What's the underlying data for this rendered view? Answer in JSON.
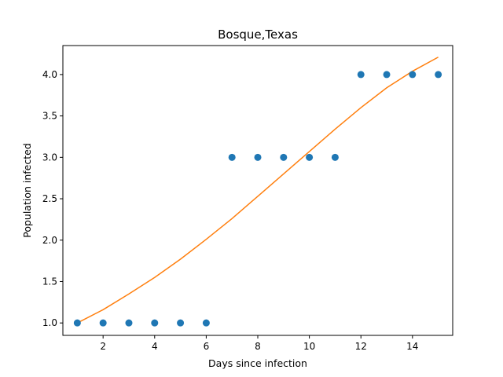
{
  "chart_data": {
    "type": "scatter",
    "title": "Bosque,Texas",
    "xlabel": "Days since infection",
    "ylabel": "Population infected",
    "xlim": [
      0.44,
      15.56
    ],
    "ylim": [
      0.85,
      4.35
    ],
    "xticks": [
      2,
      4,
      6,
      8,
      10,
      12,
      14
    ],
    "xtick_labels": [
      "2",
      "4",
      "6",
      "8",
      "10",
      "12",
      "14"
    ],
    "yticks": [
      1.0,
      1.5,
      2.0,
      2.5,
      3.0,
      3.5,
      4.0
    ],
    "ytick_labels": [
      "1.0",
      "1.5",
      "2.0",
      "2.5",
      "3.0",
      "3.5",
      "4.0"
    ],
    "grid": false,
    "series": [
      {
        "kind": "scatter",
        "color": "#1f77b4",
        "x": [
          1,
          2,
          3,
          4,
          5,
          6,
          7,
          8,
          9,
          10,
          11,
          12,
          13,
          14,
          15
        ],
        "y": [
          1,
          1,
          1,
          1,
          1,
          1,
          3,
          3,
          3,
          3,
          3,
          4,
          4,
          4,
          4
        ]
      },
      {
        "kind": "line",
        "color": "#ff7f0e",
        "x": [
          1,
          2,
          3,
          4,
          5,
          6,
          7,
          8,
          9,
          10,
          11,
          12,
          13,
          14,
          15
        ],
        "y": [
          1.0,
          1.16,
          1.35,
          1.55,
          1.77,
          2.01,
          2.26,
          2.53,
          2.8,
          3.07,
          3.34,
          3.6,
          3.84,
          4.04,
          4.21
        ]
      }
    ]
  }
}
